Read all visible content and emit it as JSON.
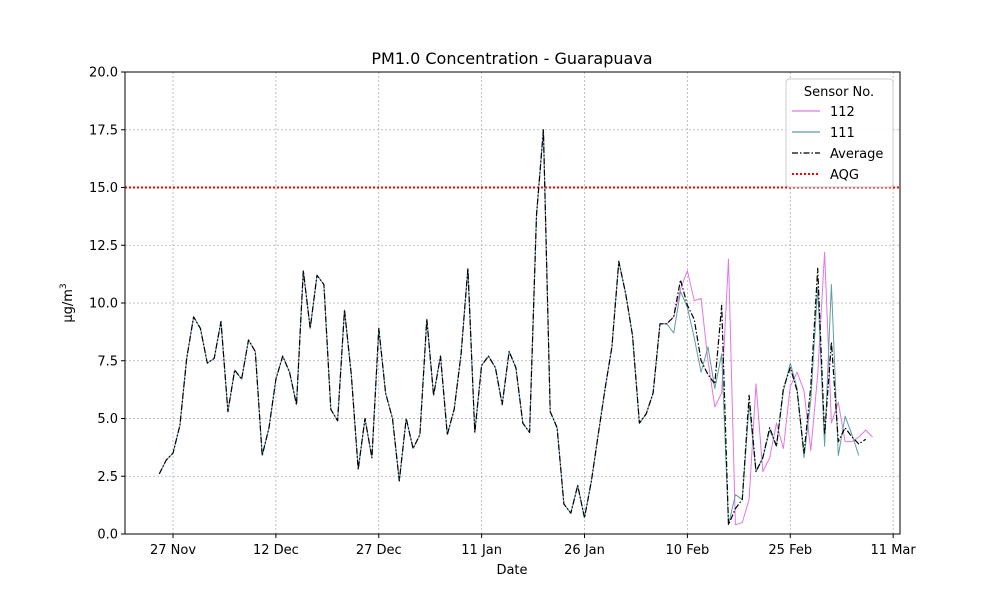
{
  "chart_data": {
    "type": "line",
    "title": "PM1.0 Concentration - Guarapuava",
    "xlabel": "Date",
    "ylabel_base": "µg/m",
    "ylabel_sup": "3",
    "ylim": [
      0,
      20
    ],
    "yticks": [
      0.0,
      2.5,
      5.0,
      7.5,
      10.0,
      12.5,
      15.0,
      17.5,
      20.0
    ],
    "ytick_labels": [
      "0.0",
      "2.5",
      "5.0",
      "7.5",
      "10.0",
      "12.5",
      "15.0",
      "17.5",
      "20.0"
    ],
    "xlim": [
      "2023-11-20",
      "2024-03-12"
    ],
    "xticks": [
      "2023-11-27",
      "2023-12-12",
      "2023-12-27",
      "2024-01-11",
      "2024-01-26",
      "2024-02-10",
      "2024-02-25",
      "2024-03-11"
    ],
    "xtick_labels": [
      "27 Nov",
      "12 Dec",
      "27 Dec",
      "11 Jan",
      "26 Jan",
      "10 Feb",
      "25 Feb",
      "11 Mar"
    ],
    "grid": true,
    "legend": {
      "title": "Sensor No.",
      "placement": "upper right"
    },
    "aqg": {
      "name": "AQG",
      "value": 15.0,
      "color": "#ff0000"
    },
    "shared_start_date": "2023-11-25",
    "shared_values": [
      2.6,
      3.2,
      3.5,
      4.7,
      7.6,
      9.4,
      8.9,
      7.4,
      7.6,
      9.2,
      5.3,
      7.1,
      6.7,
      8.4,
      7.9,
      3.4,
      4.6,
      6.7,
      7.7,
      7.0,
      5.6,
      11.4,
      8.9,
      11.2,
      10.8,
      5.4,
      4.9,
      9.7,
      6.9,
      2.8,
      5.0,
      3.3,
      8.9,
      6.1,
      5.0,
      2.3,
      5.0,
      3.7,
      4.3,
      9.3,
      6.0,
      7.7,
      4.3,
      5.4,
      7.8,
      11.5,
      4.4,
      7.3,
      7.7,
      7.2,
      5.6,
      7.9,
      7.2,
      4.8,
      4.4,
      13.8,
      17.5,
      5.3,
      4.6,
      1.3,
      0.9,
      2.1,
      0.7,
      2.3,
      4.3,
      6.3,
      8.1,
      11.8,
      10.4,
      8.6,
      4.8,
      5.2,
      6.1,
      9.1
    ],
    "series": [
      {
        "name": "112",
        "color": "#e377e3",
        "style": "solid",
        "start_date": "2024-02-07",
        "values": [
          9.1,
          9.4,
          10.6,
          11.4,
          10.1,
          10.2,
          7.5,
          5.5,
          6.1,
          11.9,
          0.4,
          0.5,
          1.5,
          6.5,
          2.7,
          3.3,
          4.8,
          3.7,
          6.4,
          7.0,
          6.2,
          3.6,
          6.9,
          12.2,
          4.8,
          5.7,
          4.0,
          4.0,
          4.2,
          4.5,
          4.2
        ]
      },
      {
        "name": "111",
        "color": "#5f9e9e",
        "style": "solid",
        "start_date": "2024-02-07",
        "values": [
          9.1,
          8.7,
          10.5,
          9.8,
          8.5,
          7.0,
          8.1,
          6.3,
          7.8,
          0.4,
          1.7,
          1.5,
          5.6,
          2.7,
          3.3,
          4.5,
          3.8,
          6.2,
          7.4,
          6.3,
          3.3,
          5.8,
          10.7,
          3.8,
          10.8,
          3.4,
          5.1,
          4.3,
          3.4
        ]
      },
      {
        "name": "Average",
        "color": "#000000",
        "style": "dashdot",
        "start_date": "2024-02-07",
        "values": [
          9.1,
          9.4,
          11.0,
          9.9,
          9.3,
          7.5,
          6.9,
          6.5,
          9.9,
          0.4,
          1.1,
          1.5,
          6.0,
          2.7,
          3.3,
          4.6,
          3.8,
          6.3,
          7.2,
          6.2,
          3.5,
          6.4,
          11.5,
          4.3,
          8.3,
          4.0,
          4.6,
          4.2,
          3.9,
          4.1
        ]
      }
    ]
  }
}
